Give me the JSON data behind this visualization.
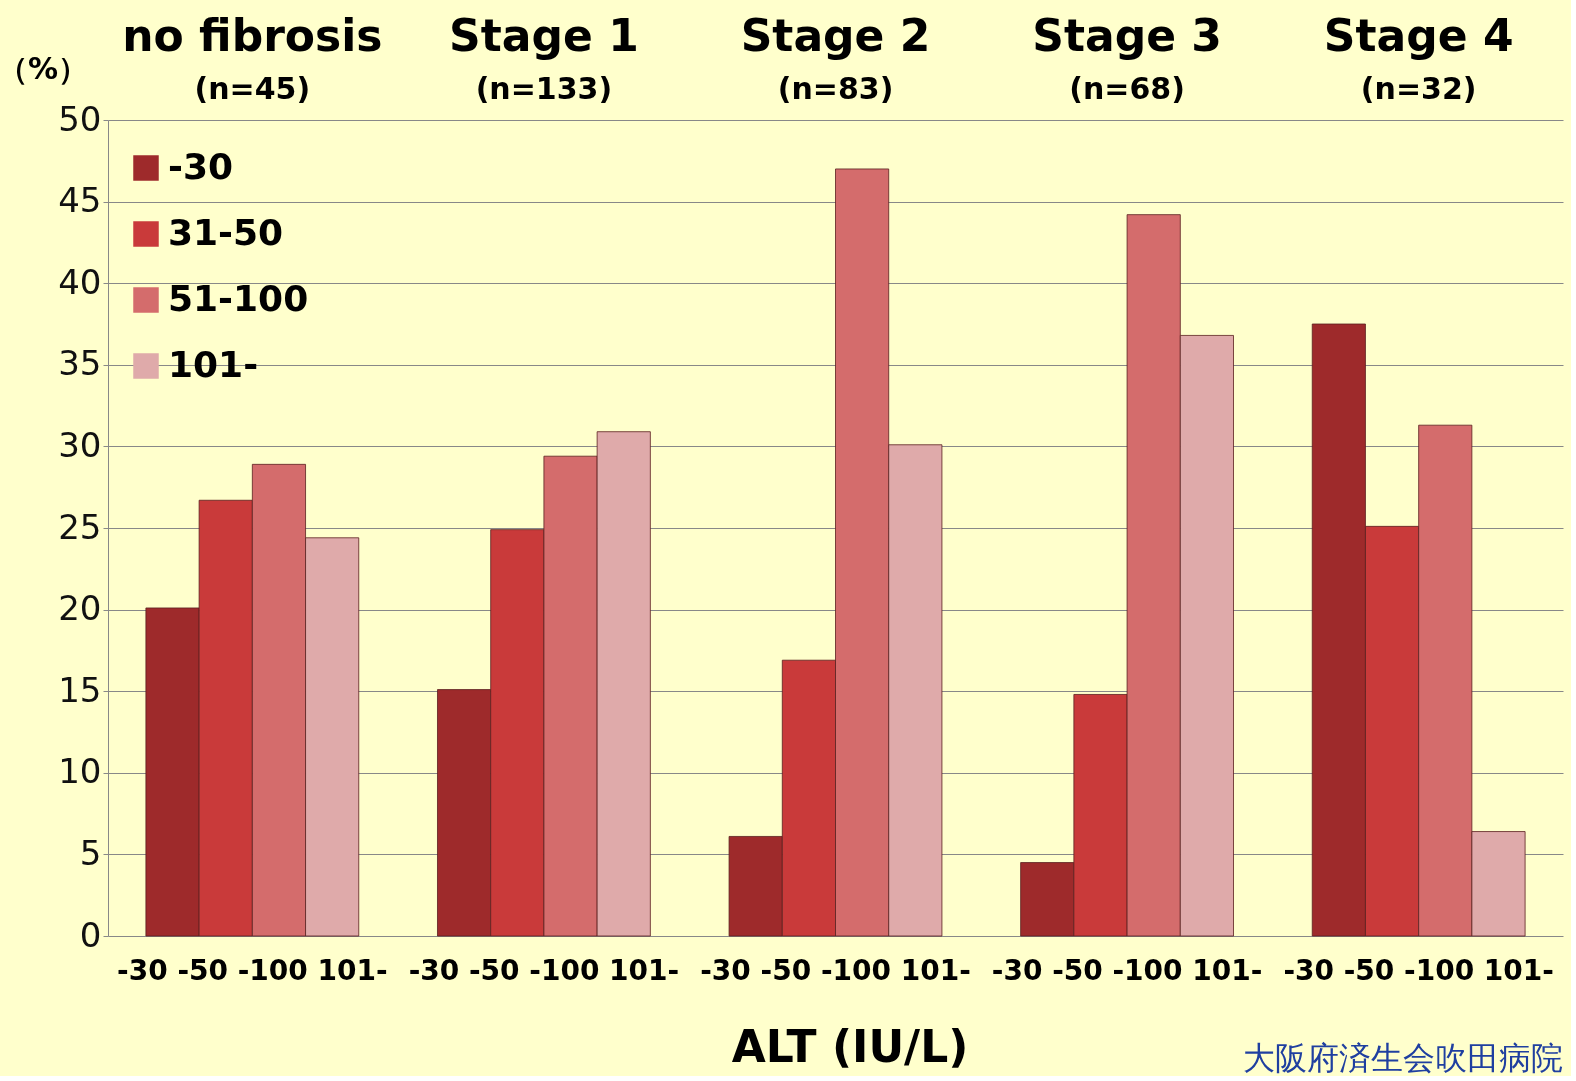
{
  "chart_data": {
    "type": "bar",
    "ylabel": "（%）",
    "xlabel": "ALT (IU/L)",
    "categories": [
      "no fibrosis\n(n=45)",
      "Stage 1\n(n=133)",
      "Stage 2\n(n=83)",
      "Stage 3\n(n=68)",
      "Stage 4\n(n=32)"
    ],
    "series": [
      {
        "name": "-30",
        "color": "#9e2a2b",
        "values": [
          20.1,
          15.1,
          6.1,
          4.5,
          37.5
        ]
      },
      {
        "name": "31-50",
        "color": "#c93a3a",
        "values": [
          26.7,
          24.9,
          16.9,
          14.8,
          25.1
        ]
      },
      {
        "name": "51-100",
        "color": "#d46c6c",
        "values": [
          28.9,
          29.4,
          47.0,
          44.2,
          31.3
        ]
      },
      {
        "name": "101-",
        "color": "#dfaaaa",
        "values": [
          24.4,
          30.9,
          30.1,
          36.8,
          6.4
        ]
      }
    ],
    "ylim": [
      0,
      50
    ],
    "yticks": [
      0,
      5,
      10,
      15,
      20,
      25,
      30,
      35,
      40,
      45,
      50
    ],
    "grid": "y",
    "legend": "top left",
    "annotations": [
      {
        "text": "-30 -50 -100 101-",
        "x": "no fibrosis\n(n=45)",
        "y": 0
      },
      {
        "text": "-30 -50 -100 101-",
        "x": "Stage 1\n(n=133)",
        "y": 0
      },
      {
        "text": "-30 -50 -100 101-",
        "x": "Stage 2\n(n=83)",
        "y": 0
      },
      {
        "text": "-30 -50 -100 101-",
        "x": "Stage 3\n(n=68)",
        "y": 0
      },
      {
        "text": "-30 -50 -100 101-",
        "x": "Stage 4\n(n=32)",
        "y": 0
      },
      "大阪府済生会吹田病院"
    ]
  }
}
